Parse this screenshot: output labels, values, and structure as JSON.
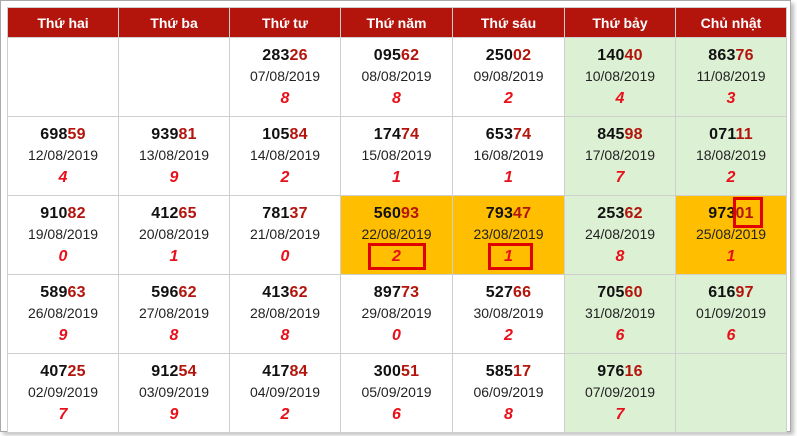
{
  "headers": [
    "Thứ hai",
    "Thứ ba",
    "Thứ tư",
    "Thứ năm",
    "Thứ sáu",
    "Thứ bảy",
    "Chủ nhật"
  ],
  "colors": {
    "header_bg": "#b3140c",
    "weekend_bg": "#dcf0d4",
    "highlight_bg": "#ffbf00",
    "digit_red": "#e8101a",
    "box_border": "#e00000"
  },
  "rows": [
    [
      null,
      null,
      {
        "head": "283",
        "tail": "26",
        "date": "07/08/2019",
        "digit": "8"
      },
      {
        "head": "095",
        "tail": "62",
        "date": "08/08/2019",
        "digit": "8"
      },
      {
        "head": "250",
        "tail": "02",
        "date": "09/08/2019",
        "digit": "2"
      },
      {
        "head": "140",
        "tail": "40",
        "date": "10/08/2019",
        "digit": "4"
      },
      {
        "head": "863",
        "tail": "76",
        "date": "11/08/2019",
        "digit": "3"
      }
    ],
    [
      {
        "head": "698",
        "tail": "59",
        "date": "12/08/2019",
        "digit": "4"
      },
      {
        "head": "939",
        "tail": "81",
        "date": "13/08/2019",
        "digit": "9"
      },
      {
        "head": "105",
        "tail": "84",
        "date": "14/08/2019",
        "digit": "2"
      },
      {
        "head": "174",
        "tail": "74",
        "date": "15/08/2019",
        "digit": "1"
      },
      {
        "head": "653",
        "tail": "74",
        "date": "16/08/2019",
        "digit": "1"
      },
      {
        "head": "845",
        "tail": "98",
        "date": "17/08/2019",
        "digit": "7"
      },
      {
        "head": "071",
        "tail": "11",
        "date": "18/08/2019",
        "digit": "2"
      }
    ],
    [
      {
        "head": "910",
        "tail": "82",
        "date": "19/08/2019",
        "digit": "0"
      },
      {
        "head": "412",
        "tail": "65",
        "date": "20/08/2019",
        "digit": "1"
      },
      {
        "head": "781",
        "tail": "37",
        "date": "21/08/2019",
        "digit": "0"
      },
      {
        "head": "560",
        "tail": "93",
        "date": "22/08/2019",
        "digit": "2",
        "highlight": true,
        "box": "digit-lg"
      },
      {
        "head": "793",
        "tail": "47",
        "date": "23/08/2019",
        "digit": "1",
        "highlight": true,
        "box": "digit-md"
      },
      {
        "head": "253",
        "tail": "62",
        "date": "24/08/2019",
        "digit": "8"
      },
      {
        "head": "973",
        "tail": "01",
        "date": "25/08/2019",
        "digit": "1",
        "highlight": true,
        "box": "number"
      }
    ],
    [
      {
        "head": "589",
        "tail": "63",
        "date": "26/08/2019",
        "digit": "9"
      },
      {
        "head": "596",
        "tail": "62",
        "date": "27/08/2019",
        "digit": "8"
      },
      {
        "head": "413",
        "tail": "62",
        "date": "28/08/2019",
        "digit": "8"
      },
      {
        "head": "897",
        "tail": "73",
        "date": "29/08/2019",
        "digit": "0"
      },
      {
        "head": "527",
        "tail": "66",
        "date": "30/08/2019",
        "digit": "2"
      },
      {
        "head": "705",
        "tail": "60",
        "date": "31/08/2019",
        "digit": "6"
      },
      {
        "head": "616",
        "tail": "97",
        "date": "01/09/2019",
        "digit": "6"
      }
    ],
    [
      {
        "head": "407",
        "tail": "25",
        "date": "02/09/2019",
        "digit": "7"
      },
      {
        "head": "912",
        "tail": "54",
        "date": "03/09/2019",
        "digit": "9"
      },
      {
        "head": "417",
        "tail": "84",
        "date": "04/09/2019",
        "digit": "2"
      },
      {
        "head": "300",
        "tail": "51",
        "date": "05/09/2019",
        "digit": "6"
      },
      {
        "head": "585",
        "tail": "17",
        "date": "06/09/2019",
        "digit": "8"
      },
      {
        "head": "976",
        "tail": "16",
        "date": "07/09/2019",
        "digit": "7"
      },
      null
    ]
  ]
}
